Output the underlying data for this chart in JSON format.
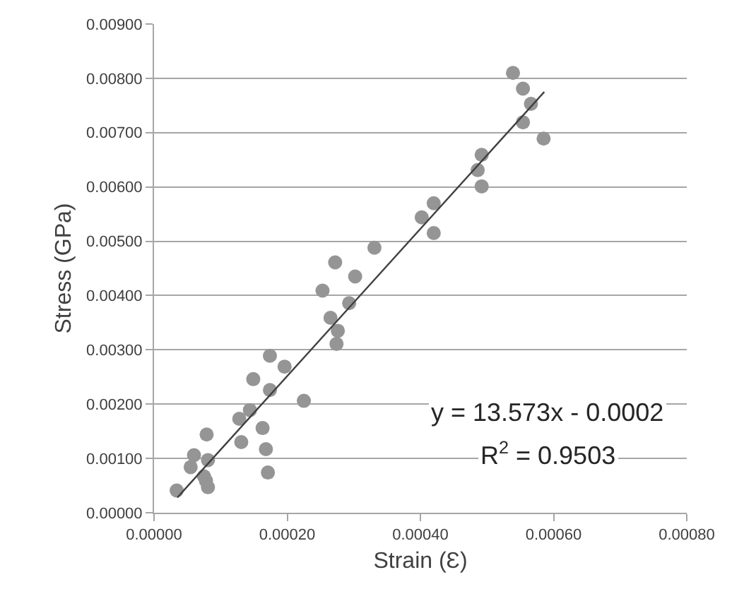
{
  "chart_data": {
    "type": "scatter",
    "xlabel": "Strain (Ɛ)",
    "ylabel": "Stress (GPa)",
    "xlim": [
      0,
      0.0008
    ],
    "ylim": [
      0,
      0.009
    ],
    "xticks": [
      {
        "value": 0,
        "label": "0.00000"
      },
      {
        "value": 0.0002,
        "label": "0.00020"
      },
      {
        "value": 0.0004,
        "label": "0.00040"
      },
      {
        "value": 0.0006,
        "label": "0.00060"
      },
      {
        "value": 0.0008,
        "label": "0.00080"
      }
    ],
    "yticks": [
      {
        "value": 0,
        "label": "0.00000"
      },
      {
        "value": 0.001,
        "label": "0.00100"
      },
      {
        "value": 0.002,
        "label": "0.00200"
      },
      {
        "value": 0.003,
        "label": "0.00300"
      },
      {
        "value": 0.004,
        "label": "0.00400"
      },
      {
        "value": 0.005,
        "label": "0.00500"
      },
      {
        "value": 0.006,
        "label": "0.00600"
      },
      {
        "value": 0.007,
        "label": "0.00700"
      },
      {
        "value": 0.008,
        "label": "0.00800"
      },
      {
        "value": 0.009,
        "label": "0.00900"
      }
    ],
    "grid": "y",
    "marker": "circle",
    "series": [
      {
        "color": "#959595",
        "x": [
          3.4e-05,
          6e-05,
          5.5e-05,
          7.9e-05,
          8.1e-05,
          7.5e-05,
          7.8e-05,
          8.1e-05,
          0.000131,
          0.000128,
          0.000144,
          0.000149,
          0.000163,
          0.000168,
          0.000171,
          0.000174,
          0.000174,
          0.000196,
          0.000225,
          0.000253,
          0.000272,
          0.000265,
          0.000276,
          0.000274,
          0.000293,
          0.000302,
          0.000331,
          0.000402,
          0.000492,
          0.000486,
          0.000492,
          0.00042,
          0.00042,
          0.000539,
          0.000554,
          0.000566,
          0.000554,
          0.000585
        ],
        "values": [
          0.00041,
          0.00106,
          0.00084,
          0.00144,
          0.00097,
          0.00067,
          0.00059,
          0.00047,
          0.0013,
          0.00173,
          0.00189,
          0.00246,
          0.00156,
          0.00117,
          0.00074,
          0.00289,
          0.00226,
          0.00269,
          0.00206,
          0.00409,
          0.00461,
          0.00359,
          0.00335,
          0.00311,
          0.00386,
          0.00435,
          0.00488,
          0.00544,
          0.00659,
          0.00631,
          0.00601,
          0.0057,
          0.00515,
          0.0081,
          0.00781,
          0.00753,
          0.00719,
          0.00689
        ]
      },
      {
        "type": "line",
        "color": "#404040",
        "marker": "none",
        "x": [
          3.5e-05,
          0.000586
        ],
        "values": [
          0.00028,
          0.00775
        ]
      }
    ],
    "annotations": [
      "y = 13.573x - 0.0002",
      "R$^{2}$ = 0.9503"
    ]
  }
}
